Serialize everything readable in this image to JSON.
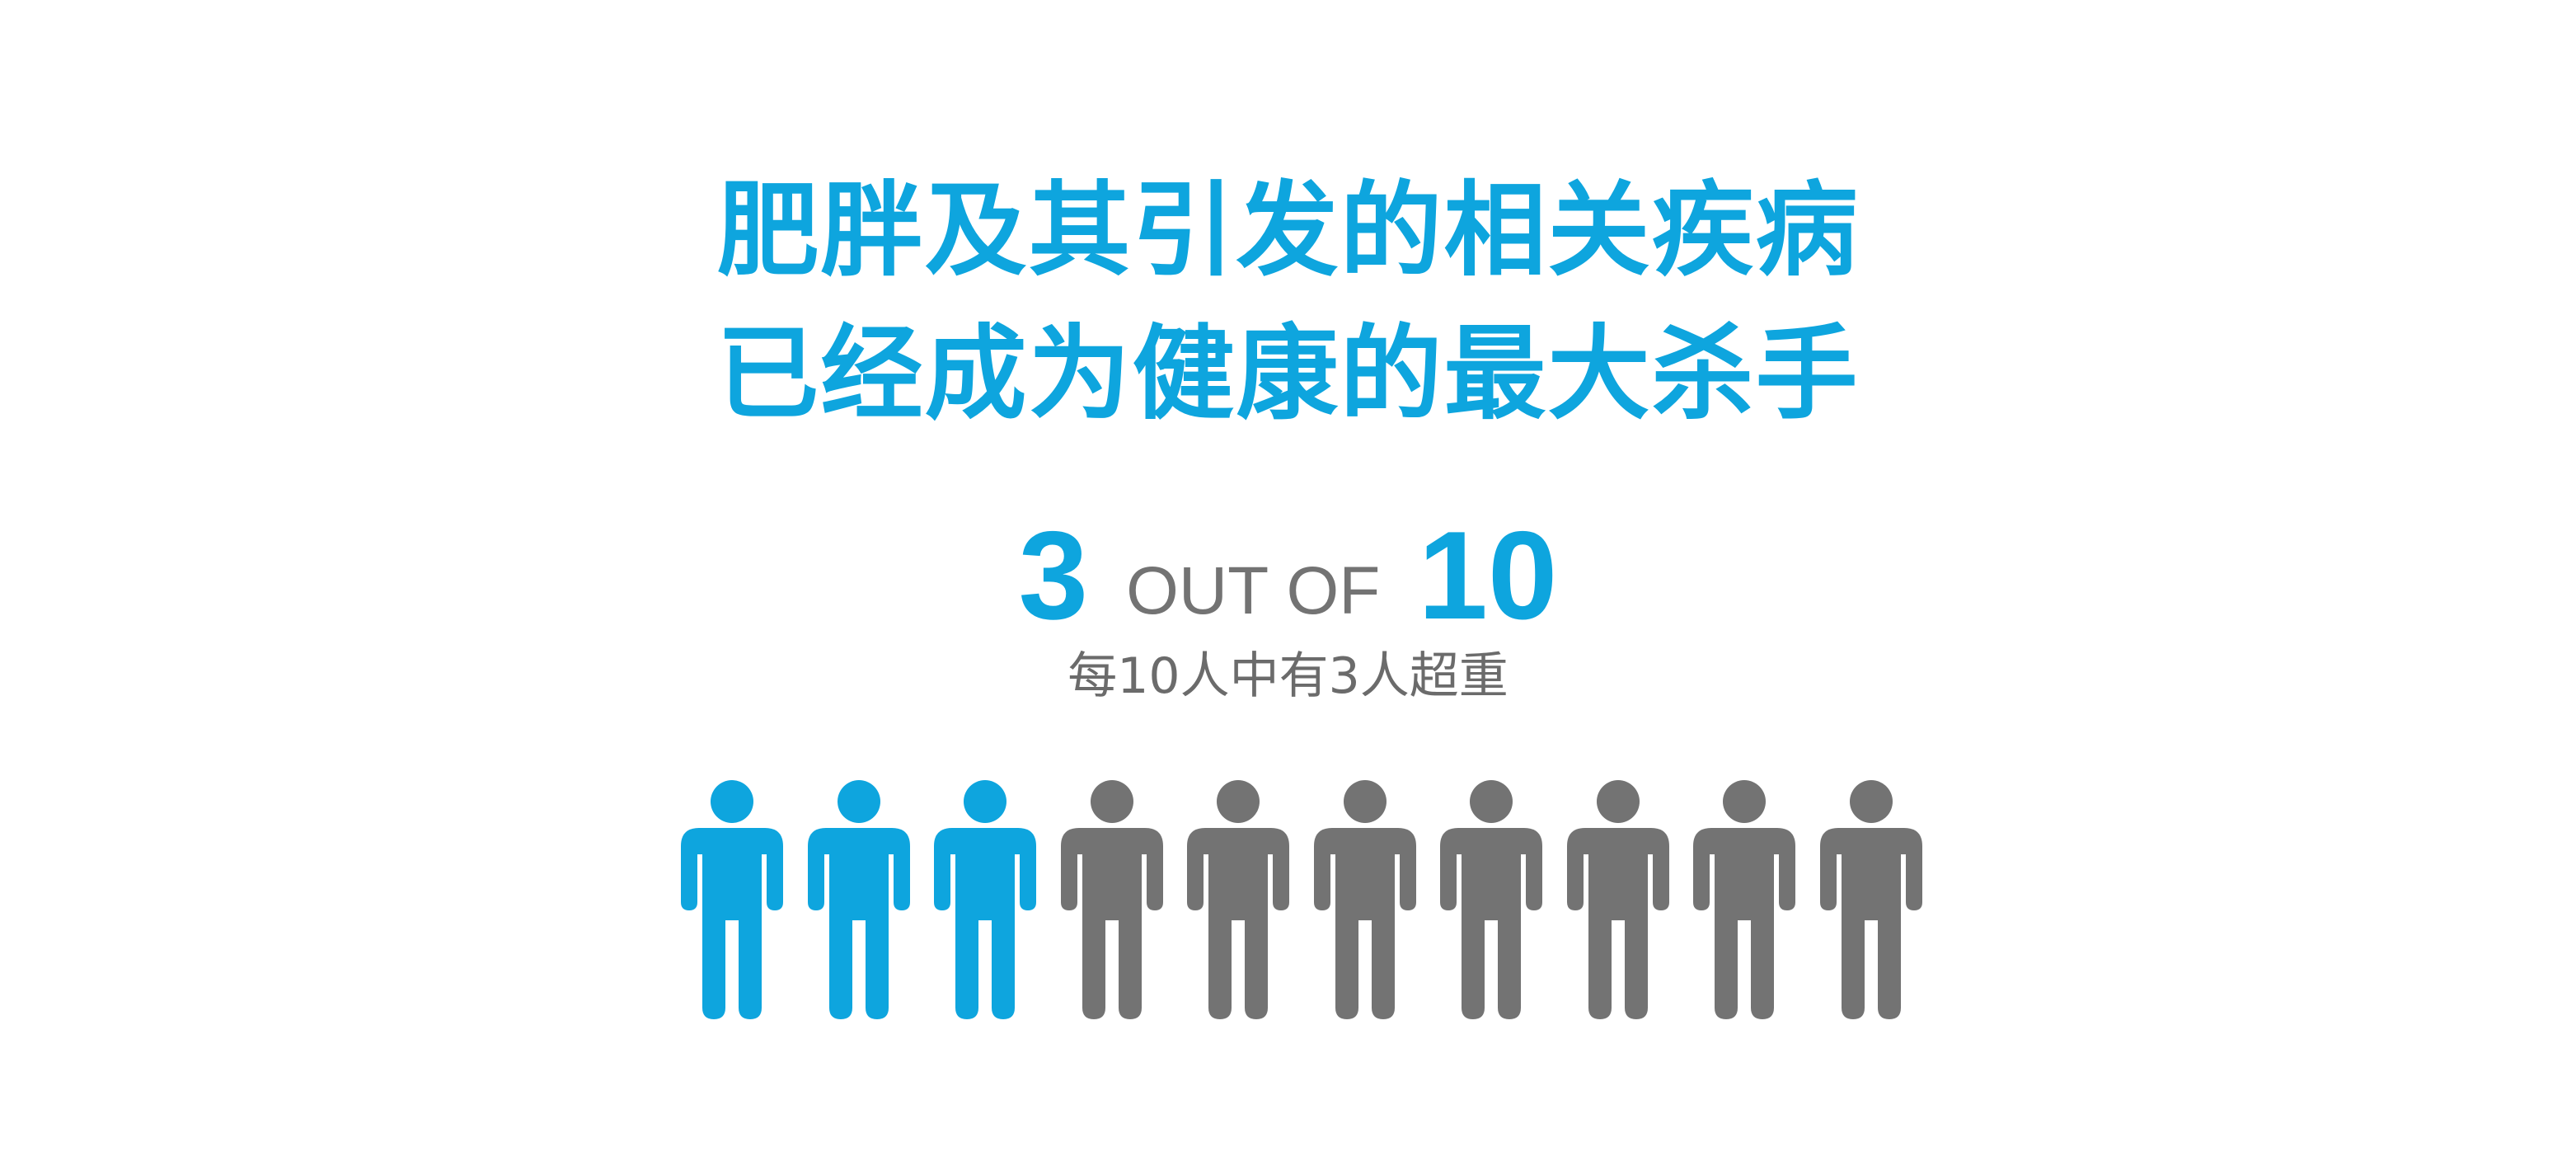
{
  "headline": {
    "line1": "肥胖及其引发的相关疾病",
    "line2": "已经成为健康的最大杀手"
  },
  "stat": {
    "count": "3",
    "connector": "OUT OF",
    "total": "10",
    "caption": "每10人中有3人超重"
  },
  "pictogram": {
    "highlighted": 3,
    "total": 10,
    "icon": "person-icon"
  },
  "colors": {
    "accent": "#0ea5de",
    "neutral": "#737373",
    "caption": "#6b6b6b",
    "background": "#ffffff"
  }
}
